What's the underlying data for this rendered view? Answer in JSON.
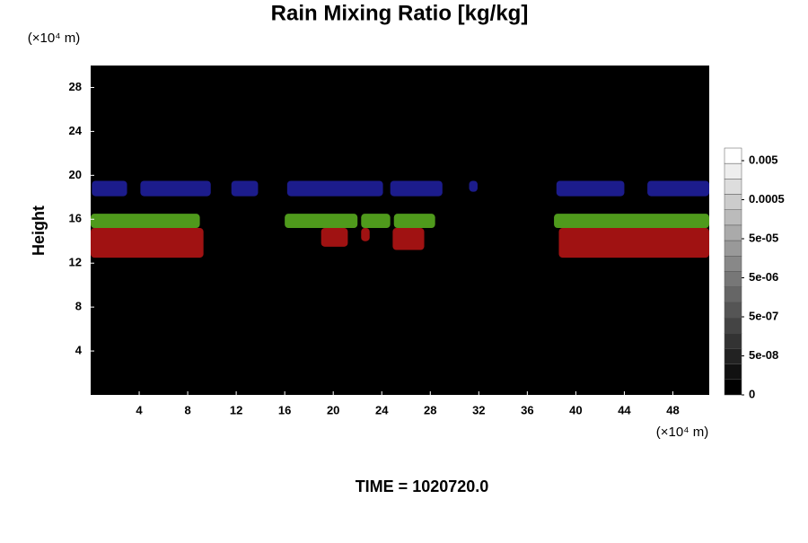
{
  "chart_data": {
    "type": "regions",
    "title": "Rain Mixing Ratio [kg/kg]",
    "ylabel": "Height",
    "x_unit": "(×10⁴ m)",
    "y_unit": "(×10⁴ m)",
    "footer": "TIME = 1020720.0",
    "background": "#000000",
    "xlim": [
      0,
      51
    ],
    "xticks": [
      4,
      8,
      12,
      16,
      20,
      24,
      28,
      32,
      36,
      40,
      44,
      48
    ],
    "ylim": [
      0,
      30
    ],
    "yticks": [
      4,
      8,
      12,
      16,
      20,
      24,
      28
    ],
    "colorbar_ticks": [
      {
        "value": 0,
        "label": "0"
      },
      {
        "value": 5e-08,
        "label": "5e-08"
      },
      {
        "value": 5e-07,
        "label": "5e-07"
      },
      {
        "value": 5e-06,
        "label": "5e-06"
      },
      {
        "value": 5e-05,
        "label": "5e-05"
      },
      {
        "value": 0.0005,
        "label": "0.0005"
      },
      {
        "value": 0.005,
        "label": "0.005"
      }
    ],
    "regions": [
      {
        "color": "#1c1c8c",
        "x": [
          0.1,
          3
        ],
        "y": [
          18.1,
          19.5
        ]
      },
      {
        "color": "#1c1c8c",
        "x": [
          4.1,
          9.9
        ],
        "y": [
          18.1,
          19.5
        ]
      },
      {
        "color": "#1c1c8c",
        "x": [
          11.6,
          13.8
        ],
        "y": [
          18.1,
          19.5
        ]
      },
      {
        "color": "#1c1c8c",
        "x": [
          16.2,
          24.1
        ],
        "y": [
          18.1,
          19.5
        ]
      },
      {
        "color": "#1c1c8c",
        "x": [
          24.7,
          29
        ],
        "y": [
          18.1,
          19.5
        ]
      },
      {
        "color": "#1c1c8c",
        "x": [
          31.2,
          31.9
        ],
        "y": [
          18.5,
          19.5
        ]
      },
      {
        "color": "#1c1c8c",
        "x": [
          38.4,
          44
        ],
        "y": [
          18.1,
          19.5
        ]
      },
      {
        "color": "#1c1c8c",
        "x": [
          45.9,
          51
        ],
        "y": [
          18.1,
          19.5
        ]
      },
      {
        "color": "#4f9a1c",
        "x": [
          0,
          9
        ],
        "y": [
          15.2,
          16.5
        ]
      },
      {
        "color": "#4f9a1c",
        "x": [
          16,
          22
        ],
        "y": [
          15.2,
          16.5
        ]
      },
      {
        "color": "#4f9a1c",
        "x": [
          22.3,
          24.7
        ],
        "y": [
          15.2,
          16.5
        ]
      },
      {
        "color": "#4f9a1c",
        "x": [
          25,
          28.4
        ],
        "y": [
          15.2,
          16.5
        ]
      },
      {
        "color": "#4f9a1c",
        "x": [
          38.2,
          51
        ],
        "y": [
          15.2,
          16.5
        ]
      },
      {
        "color": "#a01212",
        "x": [
          0,
          9.3
        ],
        "y": [
          12.5,
          15.2
        ]
      },
      {
        "color": "#a01212",
        "x": [
          19,
          21.2
        ],
        "y": [
          13.5,
          15.2
        ]
      },
      {
        "color": "#a01212",
        "x": [
          22.3,
          23
        ],
        "y": [
          14,
          15.2
        ]
      },
      {
        "color": "#a01212",
        "x": [
          24.9,
          27.5
        ],
        "y": [
          13.2,
          15.2
        ]
      },
      {
        "color": "#a01212",
        "x": [
          38.6,
          51
        ],
        "y": [
          12.5,
          15.2
        ]
      }
    ]
  }
}
